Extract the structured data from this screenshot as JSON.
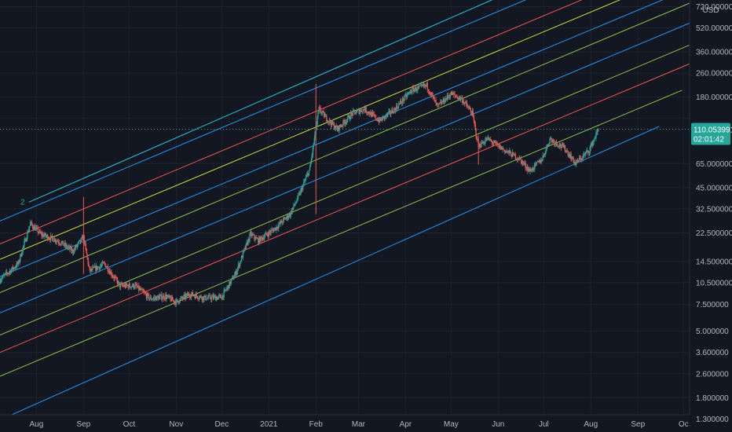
{
  "chart_data": {
    "type": "candlestick",
    "unit": "USD",
    "y_scale": "log",
    "ylim": [
      1.2,
      760
    ],
    "xlim": [
      "2020-07-08",
      "2021-10-05"
    ],
    "y_ticks": [
      {
        "value": 720,
        "label": "720.000000"
      },
      {
        "value": 520,
        "label": "520.000000"
      },
      {
        "value": 360,
        "label": "360.000000"
      },
      {
        "value": 260,
        "label": "260.000000"
      },
      {
        "value": 180,
        "label": "180.000000"
      },
      {
        "value": 130,
        "label": "130.000000"
      },
      {
        "value": 65,
        "label": "65.000000"
      },
      {
        "value": 45,
        "label": "45.000000"
      },
      {
        "value": 32.5,
        "label": "32.500000"
      },
      {
        "value": 22.5,
        "label": "22.500000"
      },
      {
        "value": 14.5,
        "label": "14.500000"
      },
      {
        "value": 10.5,
        "label": "10.500000"
      },
      {
        "value": 7.5,
        "label": "7.500000"
      },
      {
        "value": 5,
        "label": "5.000000"
      },
      {
        "value": 3.6,
        "label": "3.600000"
      },
      {
        "value": 2.6,
        "label": "2.600000"
      },
      {
        "value": 1.8,
        "label": "1.800000"
      },
      {
        "value": 1.3,
        "label": "1.300000"
      }
    ],
    "x_ticks": [
      {
        "date": "2020-08-01",
        "label": "Aug"
      },
      {
        "date": "2020-09-01",
        "label": "Sep"
      },
      {
        "date": "2020-10-01",
        "label": "Oct"
      },
      {
        "date": "2020-11-01",
        "label": "Nov"
      },
      {
        "date": "2020-12-01",
        "label": "Dec"
      },
      {
        "date": "2021-01-01",
        "label": "2021"
      },
      {
        "date": "2021-02-01",
        "label": "Feb"
      },
      {
        "date": "2021-03-01",
        "label": "Mar"
      },
      {
        "date": "2021-04-01",
        "label": "Apr"
      },
      {
        "date": "2021-05-01",
        "label": "May"
      },
      {
        "date": "2021-06-01",
        "label": "Jun"
      },
      {
        "date": "2021-07-01",
        "label": "Jul"
      },
      {
        "date": "2021-08-01",
        "label": "Aug"
      },
      {
        "date": "2021-09-01",
        "label": "Sep"
      },
      {
        "date": "2021-10-01",
        "label": "Oc"
      }
    ],
    "price_path": [
      [
        "2020-07-08",
        11
      ],
      [
        "2020-07-20",
        14
      ],
      [
        "2020-07-28",
        26
      ],
      [
        "2020-08-04",
        22
      ],
      [
        "2020-08-15",
        20
      ],
      [
        "2020-08-25",
        17
      ],
      [
        "2020-09-01",
        21
      ],
      [
        "2020-09-05",
        12.5
      ],
      [
        "2020-09-15",
        14
      ],
      [
        "2020-09-25",
        10
      ],
      [
        "2020-10-05",
        10
      ],
      [
        "2020-10-15",
        8.2
      ],
      [
        "2020-10-25",
        8.5
      ],
      [
        "2020-11-01",
        7.8
      ],
      [
        "2020-11-10",
        8.8
      ],
      [
        "2020-11-20",
        8.3
      ],
      [
        "2020-12-01",
        8.4
      ],
      [
        "2020-12-10",
        12
      ],
      [
        "2020-12-20",
        22
      ],
      [
        "2020-12-25",
        20
      ],
      [
        "2021-01-05",
        24
      ],
      [
        "2021-01-15",
        30
      ],
      [
        "2021-01-20",
        38
      ],
      [
        "2021-01-28",
        60
      ],
      [
        "2021-02-03",
        150
      ],
      [
        "2021-02-08",
        130
      ],
      [
        "2021-02-15",
        110
      ],
      [
        "2021-02-25",
        140
      ],
      [
        "2021-03-05",
        150
      ],
      [
        "2021-03-15",
        125
      ],
      [
        "2021-03-25",
        150
      ],
      [
        "2021-04-05",
        200
      ],
      [
        "2021-04-15",
        215
      ],
      [
        "2021-04-22",
        155
      ],
      [
        "2021-05-01",
        190
      ],
      [
        "2021-05-08",
        175
      ],
      [
        "2021-05-15",
        140
      ],
      [
        "2021-05-19",
        85
      ],
      [
        "2021-05-25",
        95
      ],
      [
        "2021-06-05",
        80
      ],
      [
        "2021-06-15",
        70
      ],
      [
        "2021-06-22",
        58
      ],
      [
        "2021-06-30",
        70
      ],
      [
        "2021-07-05",
        95
      ],
      [
        "2021-07-15",
        82
      ],
      [
        "2021-07-22",
        65
      ],
      [
        "2021-07-31",
        80
      ],
      [
        "2021-08-06",
        110
      ]
    ],
    "spike_points": [
      {
        "date": "2020-09-01",
        "high": 39,
        "low": 12
      },
      {
        "date": "2021-05-19",
        "high": 100,
        "low": 64
      },
      {
        "date": "2021-02-01",
        "high": 220,
        "low": 30
      }
    ],
    "marker": {
      "date": "2020-07-27",
      "value": 36,
      "label": "2"
    },
    "channel_lines": [
      {
        "color": "#2196f3",
        "start": [
          "2020-07-08",
          1.28
        ],
        "end": [
          "2021-09-15",
          115
        ]
      },
      {
        "color": "#8bc34a",
        "start": [
          "2020-07-08",
          2.5
        ],
        "end": [
          "2021-09-30",
          200
        ]
      },
      {
        "color": "#ef5350",
        "start": [
          "2020-07-08",
          3.6
        ],
        "end": [
          "2021-10-05",
          300
        ]
      },
      {
        "color": "#8bc34a",
        "start": [
          "2020-07-08",
          4.7
        ],
        "end": [
          "2021-10-05",
          400
        ]
      },
      {
        "color": "#2196f3",
        "start": [
          "2020-07-08",
          6.6
        ],
        "end": [
          "2021-10-05",
          560
        ]
      },
      {
        "color": "#8bc34a",
        "start": [
          "2020-07-08",
          9
        ],
        "end": [
          "2021-10-05",
          760
        ]
      },
      {
        "color": "#2196f3",
        "start": [
          "2020-07-08",
          11.5
        ],
        "end": [
          "2021-10-05",
          950
        ]
      },
      {
        "color": "#cddc39",
        "start": [
          "2020-07-08",
          15
        ],
        "end": [
          "2021-10-05",
          1250
        ]
      },
      {
        "color": "#ef5350",
        "start": [
          "2020-07-08",
          19
        ],
        "end": [
          "2021-10-05",
          1600
        ]
      },
      {
        "color": "#2196f3",
        "start": [
          "2020-07-08",
          27
        ],
        "end": [
          "2021-10-05",
          2300
        ]
      },
      {
        "color": "#26c6da",
        "start": [
          "2020-07-27",
          36
        ],
        "end": [
          "2021-10-05",
          3000
        ]
      }
    ],
    "last_price": {
      "value": 110.053991,
      "label": "110.053991",
      "countdown": "02:01:42",
      "color": "#26a69a"
    },
    "grid": true
  }
}
